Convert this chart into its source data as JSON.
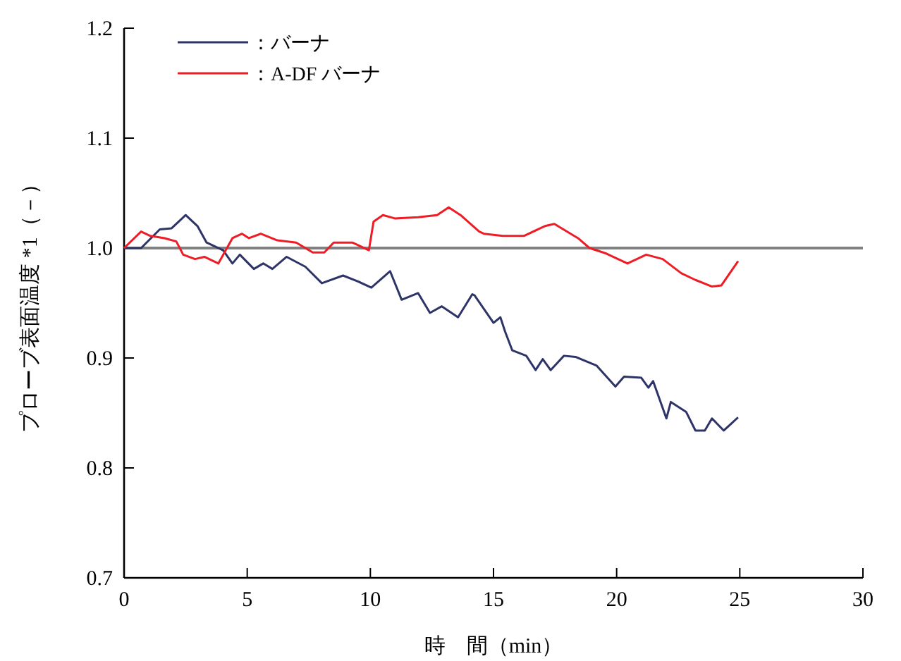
{
  "chart_data": {
    "type": "line",
    "xlabel": "時　間（min）",
    "ylabel": "プローブ表面温度 *1（－）",
    "xlim": [
      0,
      30
    ],
    "ylim": [
      0.7,
      1.2
    ],
    "xticks": [
      0,
      5,
      10,
      15,
      20,
      25,
      30
    ],
    "yticks": [
      {
        "value": 0.7,
        "label": "0.7"
      },
      {
        "value": 0.8,
        "label": "0.8"
      },
      {
        "value": 0.9,
        "label": "0.9"
      },
      {
        "value": 1.0,
        "label": "1.0"
      },
      {
        "value": 1.1,
        "label": "1.1"
      },
      {
        "value": 1.2,
        "label": "1.2"
      }
    ],
    "grid": false,
    "legend": "top left",
    "marker": "none",
    "line_style": "solid",
    "ref_lines": [
      {
        "axis": "y",
        "value": 1.0,
        "color": "#808080",
        "line_style": "solid"
      }
    ],
    "series": [
      {
        "name": "：バーナ",
        "color": "#2e3468",
        "x": [
          0,
          0.69,
          1.45,
          1.93,
          2.5,
          2.98,
          3.35,
          4.02,
          4.4,
          4.7,
          5.27,
          5.65,
          6.02,
          6.6,
          7.36,
          8.03,
          8.89,
          9.46,
          10.04,
          10.8,
          11.27,
          11.94,
          12.42,
          12.9,
          13.56,
          14.14,
          14.23,
          15.0,
          15.28,
          15.47,
          15.76,
          16.33,
          16.71,
          17.0,
          17.32,
          17.86,
          18.33,
          19.19,
          19.95,
          20.3,
          21.0,
          21.29,
          21.48,
          22.02,
          22.2,
          22.82,
          23.2,
          23.58,
          23.87,
          24.35,
          24.64,
          24.93
        ],
        "values": [
          1.0,
          1.0,
          1.017,
          1.018,
          1.03,
          1.02,
          1.005,
          0.998,
          0.986,
          0.994,
          0.981,
          0.986,
          0.981,
          0.992,
          0.983,
          0.968,
          0.975,
          0.97,
          0.964,
          0.979,
          0.953,
          0.959,
          0.941,
          0.947,
          0.937,
          0.958,
          0.957,
          0.932,
          0.937,
          0.924,
          0.907,
          0.902,
          0.889,
          0.899,
          0.889,
          0.902,
          0.901,
          0.893,
          0.874,
          0.883,
          0.882,
          0.873,
          0.879,
          0.845,
          0.86,
          0.851,
          0.834,
          0.834,
          0.845,
          0.834,
          0.84,
          0.846
        ]
      },
      {
        "name": "：A-DF バーナ",
        "color": "#ee1c25",
        "x": [
          0,
          0.69,
          1.07,
          1.64,
          2.12,
          2.4,
          2.88,
          3.26,
          3.83,
          4.4,
          4.79,
          5.07,
          5.55,
          6.22,
          6.99,
          7.66,
          8.13,
          8.51,
          9.27,
          9.94,
          10.13,
          10.51,
          10.99,
          11.94,
          12.71,
          13.18,
          13.66,
          14.42,
          14.61,
          15.38,
          15.95,
          16.23,
          17.09,
          17.47,
          18.43,
          18.9,
          19.58,
          20.44,
          21.2,
          21.87,
          22.63,
          23.2,
          23.87,
          24.25,
          24.93
        ],
        "values": [
          1.0,
          1.015,
          1.011,
          1.009,
          1.006,
          0.994,
          0.99,
          0.992,
          0.986,
          1.009,
          1.013,
          1.009,
          1.013,
          1.007,
          1.005,
          0.996,
          0.996,
          1.005,
          1.005,
          0.998,
          1.024,
          1.03,
          1.027,
          1.028,
          1.03,
          1.037,
          1.03,
          1.015,
          1.013,
          1.011,
          1.011,
          1.011,
          1.02,
          1.022,
          1.009,
          1.0,
          0.995,
          0.986,
          0.994,
          0.99,
          0.977,
          0.971,
          0.965,
          0.966,
          0.988
        ]
      }
    ]
  }
}
